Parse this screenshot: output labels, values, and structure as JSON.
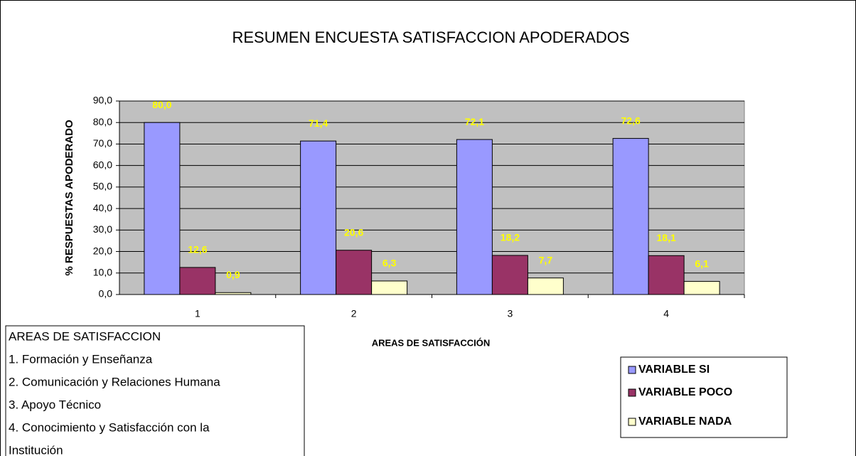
{
  "chart_data": {
    "type": "bar",
    "title": "RESUMEN ENCUESTA SATISFACCION APODERADOS",
    "y_label": "% RESPUESTAS APODERADO",
    "x_label": "AREAS DE SATISFACCIÓN",
    "categories": [
      "1",
      "2",
      "3",
      "4"
    ],
    "series": [
      {
        "name": "VARIABLE SI",
        "color": "#9999ff",
        "values": [
          80.0,
          71.4,
          72.1,
          72.6
        ],
        "value_labels": [
          "80,0",
          "71,4",
          "72,1",
          "72,6"
        ]
      },
      {
        "name": "VARIABLE POCO",
        "color": "#993366",
        "values": [
          12.6,
          20.6,
          18.2,
          18.1
        ],
        "value_labels": [
          "12,6",
          "20,6",
          "18,2",
          "18,1"
        ]
      },
      {
        "name": "VARIABLE NADA",
        "color": "#ffffcc",
        "values": [
          0.9,
          6.3,
          7.7,
          6.1
        ],
        "value_labels": [
          "0,9",
          "6,3",
          "7,7",
          "6,1"
        ]
      }
    ],
    "ylim": [
      0,
      90
    ],
    "yticks": [
      {
        "value": 0,
        "label": "0,0"
      },
      {
        "value": 10,
        "label": "10,0"
      },
      {
        "value": 20,
        "label": "20,0"
      },
      {
        "value": 30,
        "label": "30,0"
      },
      {
        "value": 40,
        "label": "40,0"
      },
      {
        "value": 50,
        "label": "50,0"
      },
      {
        "value": 60,
        "label": "60,0"
      },
      {
        "value": 70,
        "label": "70,0"
      },
      {
        "value": 80,
        "label": "80,0"
      },
      {
        "value": 90,
        "label": "90,0"
      }
    ],
    "grid": true,
    "legend": "lower right",
    "annotation_box": {
      "title": "AREAS DE SATISFACCION",
      "items": [
        "1. Formación y Enseñanza",
        "2. Comunicación y Relaciones Humana",
        "3. Apoyo Técnico",
        "4. Conocimiento y Satisfacción con la",
        "Institución"
      ]
    }
  }
}
